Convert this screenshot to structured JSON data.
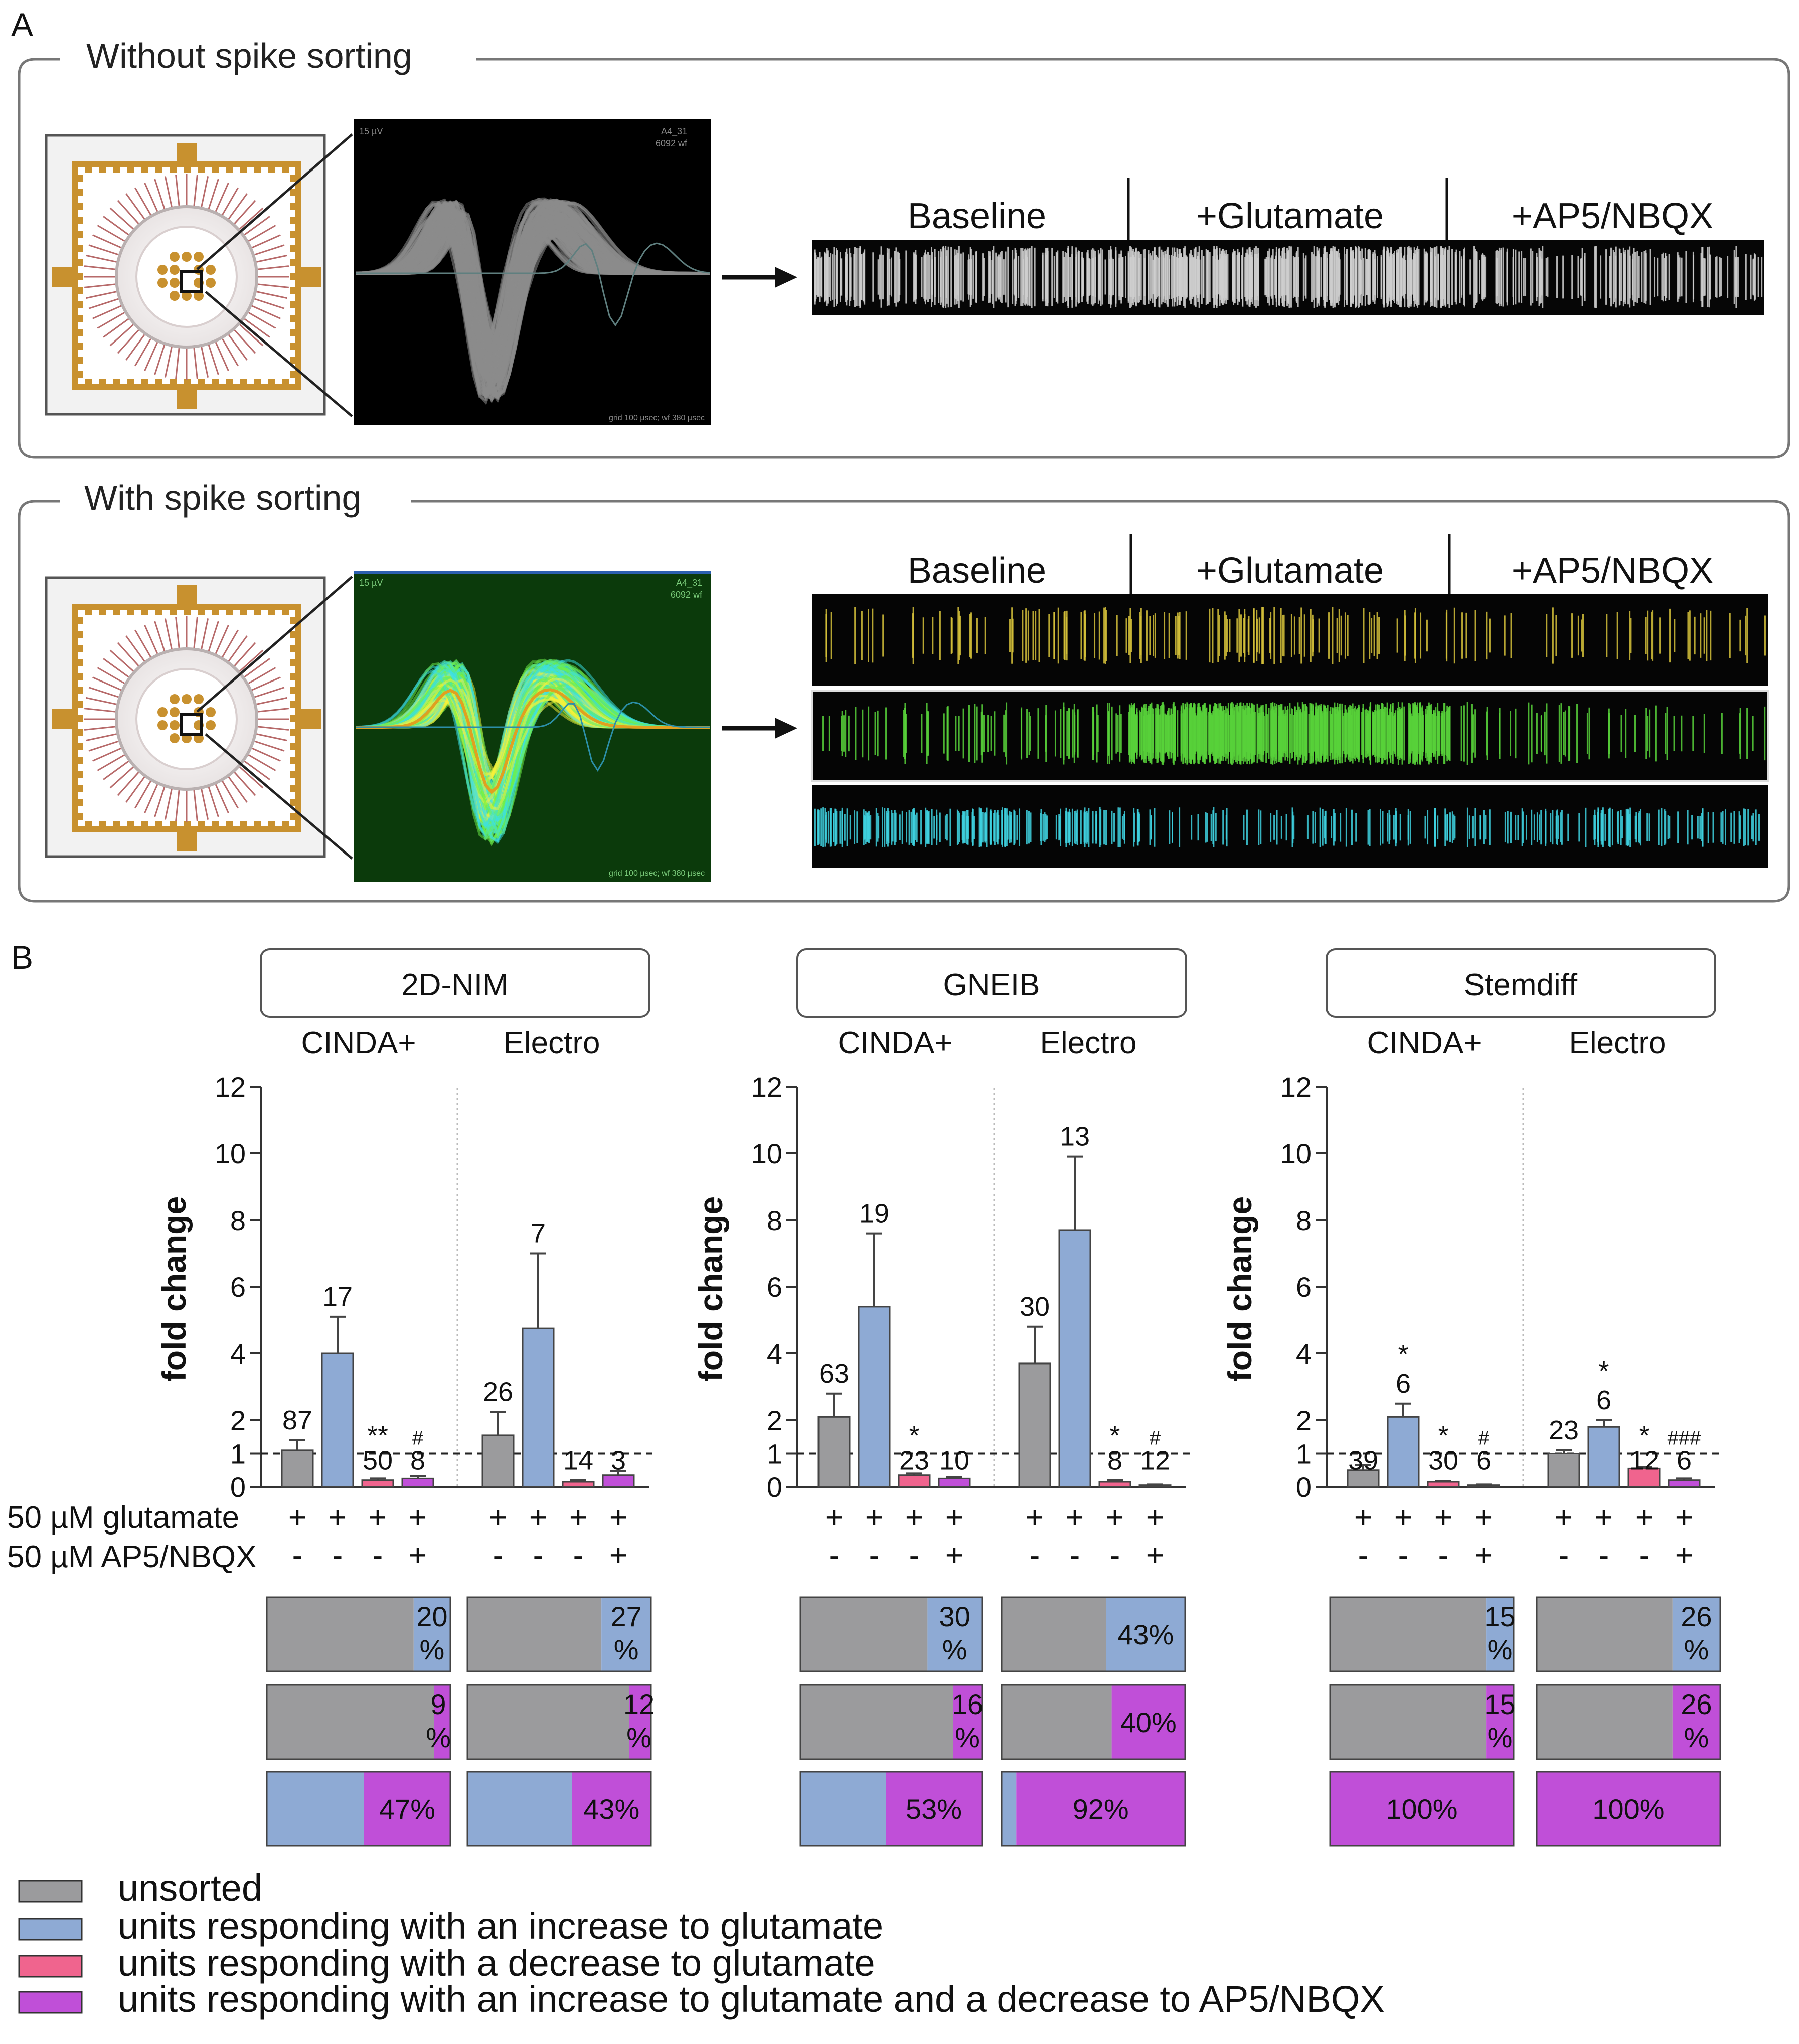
{
  "panel_a": {
    "letter": "A",
    "top_title": "Without spike sorting",
    "bottom_title": "With spike sorting",
    "segments": [
      "Baseline",
      "+Glutamate",
      "+AP5/NBQX"
    ],
    "scope_labels": {
      "voltage": "15 µV",
      "channel": "A4_31",
      "count": "6092 wf",
      "grid": "grid 100 µsec; wf 380 µsec"
    }
  },
  "panel_b": {
    "letter": "B",
    "ylabel": "fold change",
    "row_label_glutamate": "50 µM glutamate",
    "row_label_ap5": "50 µM AP5/NBQX",
    "colors": {
      "unsorted": "#9b9b9d",
      "increase": "#8eaad4",
      "decrease": "#f0648e",
      "increase_decrease": "#c04fd8"
    }
  },
  "chart_data": [
    {
      "type": "bar",
      "title": "2D-NIM",
      "groups": [
        "CINDA+",
        "Electro"
      ],
      "ylim": [
        0,
        12
      ],
      "yticks": [
        0,
        1,
        2,
        4,
        6,
        8,
        10,
        12
      ],
      "glutamate": [
        "+",
        "+",
        "+",
        "+"
      ],
      "ap5": [
        "-",
        "-",
        "-",
        "+"
      ],
      "bars": [
        {
          "group": "CINDA+",
          "category": "unsorted",
          "value": 1.1,
          "err": 0.3,
          "n": "87",
          "sig": ""
        },
        {
          "group": "CINDA+",
          "category": "increase",
          "value": 4.0,
          "err": 1.1,
          "n": "17",
          "sig": ""
        },
        {
          "group": "CINDA+",
          "category": "decrease",
          "value": 0.2,
          "err": 0.05,
          "n": "50",
          "sig": "**"
        },
        {
          "group": "CINDA+",
          "category": "increase_decrease",
          "value": 0.25,
          "err": 0.08,
          "n": "8",
          "sig": "#"
        },
        {
          "group": "Electro",
          "category": "unsorted",
          "value": 1.55,
          "err": 0.7,
          "n": "26",
          "sig": ""
        },
        {
          "group": "Electro",
          "category": "increase",
          "value": 4.75,
          "err": 2.25,
          "n": "7",
          "sig": ""
        },
        {
          "group": "Electro",
          "category": "decrease",
          "value": 0.15,
          "err": 0.05,
          "n": "14",
          "sig": ""
        },
        {
          "group": "Electro",
          "category": "increase_decrease",
          "value": 0.35,
          "err": 0.12,
          "n": "3",
          "sig": ""
        }
      ],
      "proportions": [
        [
          {
            "unsorted": 80,
            "increase": 20,
            "label": "20\n%"
          },
          {
            "unsorted": 73,
            "increase": 27,
            "label": "27\n%"
          }
        ],
        [
          {
            "unsorted": 91,
            "increase_decrease": 9,
            "label": "9\n%"
          },
          {
            "unsorted": 88,
            "increase_decrease": 12,
            "label": "12\n%"
          }
        ],
        [
          {
            "increase": 53,
            "increase_decrease": 47,
            "label": "47%"
          },
          {
            "increase": 57,
            "increase_decrease": 43,
            "label": "43%"
          }
        ]
      ]
    },
    {
      "type": "bar",
      "title": "GNEIB",
      "groups": [
        "CINDA+",
        "Electro"
      ],
      "ylim": [
        0,
        12
      ],
      "yticks": [
        0,
        1,
        2,
        4,
        6,
        8,
        10,
        12
      ],
      "glutamate": [
        "+",
        "+",
        "+",
        "+"
      ],
      "ap5": [
        "-",
        "-",
        "-",
        "+"
      ],
      "bars": [
        {
          "group": "CINDA+",
          "category": "unsorted",
          "value": 2.1,
          "err": 0.7,
          "n": "63",
          "sig": ""
        },
        {
          "group": "CINDA+",
          "category": "increase",
          "value": 5.4,
          "err": 2.2,
          "n": "19",
          "sig": ""
        },
        {
          "group": "CINDA+",
          "category": "decrease",
          "value": 0.35,
          "err": 0.05,
          "n": "23",
          "sig": "*"
        },
        {
          "group": "CINDA+",
          "category": "increase_decrease",
          "value": 0.25,
          "err": 0.05,
          "n": "10",
          "sig": ""
        },
        {
          "group": "Electro",
          "category": "unsorted",
          "value": 3.7,
          "err": 1.1,
          "n": "30",
          "sig": ""
        },
        {
          "group": "Electro",
          "category": "increase",
          "value": 7.7,
          "err": 2.2,
          "n": "13",
          "sig": ""
        },
        {
          "group": "Electro",
          "category": "decrease",
          "value": 0.15,
          "err": 0.05,
          "n": "8",
          "sig": "*"
        },
        {
          "group": "Electro",
          "category": "increase_decrease",
          "value": 0.05,
          "err": 0.02,
          "n": "12",
          "sig": "#"
        }
      ],
      "proportions": [
        [
          {
            "unsorted": 70,
            "increase": 30,
            "label": "30\n%"
          },
          {
            "unsorted": 57,
            "increase": 43,
            "label": "43%"
          }
        ],
        [
          {
            "unsorted": 84,
            "increase_decrease": 16,
            "label": "16\n%"
          },
          {
            "unsorted": 60,
            "increase_decrease": 40,
            "label": "40%"
          }
        ],
        [
          {
            "increase": 47,
            "increase_decrease": 53,
            "label": "53%"
          },
          {
            "increase": 8,
            "increase_decrease": 92,
            "label": "92%"
          }
        ]
      ]
    },
    {
      "type": "bar",
      "title": "Stemdiff",
      "groups": [
        "CINDA+",
        "Electro"
      ],
      "ylim": [
        0,
        12
      ],
      "yticks": [
        0,
        1,
        2,
        4,
        6,
        8,
        10,
        12
      ],
      "glutamate": [
        "+",
        "+",
        "+",
        "+"
      ],
      "ap5": [
        "-",
        "-",
        "-",
        "+"
      ],
      "bars": [
        {
          "group": "CINDA+",
          "category": "unsorted",
          "value": 0.5,
          "err": 0.15,
          "n": "39",
          "sig": ""
        },
        {
          "group": "CINDA+",
          "category": "increase",
          "value": 2.1,
          "err": 0.4,
          "n": "6",
          "sig": "*"
        },
        {
          "group": "CINDA+",
          "category": "decrease",
          "value": 0.15,
          "err": 0.03,
          "n": "30",
          "sig": "*"
        },
        {
          "group": "CINDA+",
          "category": "increase_decrease",
          "value": 0.05,
          "err": 0.02,
          "n": "6",
          "sig": "#"
        },
        {
          "group": "Electro",
          "category": "unsorted",
          "value": 1.0,
          "err": 0.1,
          "n": "23",
          "sig": ""
        },
        {
          "group": "Electro",
          "category": "increase",
          "value": 1.8,
          "err": 0.2,
          "n": "6",
          "sig": "*"
        },
        {
          "group": "Electro",
          "category": "decrease",
          "value": 0.55,
          "err": 0.05,
          "n": "12",
          "sig": "*"
        },
        {
          "group": "Electro",
          "category": "increase_decrease",
          "value": 0.2,
          "err": 0.05,
          "n": "6",
          "sig": "###"
        }
      ],
      "proportions": [
        [
          {
            "unsorted": 85,
            "increase": 15,
            "label": "15\n%"
          },
          {
            "unsorted": 74,
            "increase": 26,
            "label": "26\n%"
          }
        ],
        [
          {
            "unsorted": 85,
            "increase_decrease": 15,
            "label": "15\n%"
          },
          {
            "unsorted": 74,
            "increase_decrease": 26,
            "label": "26\n%"
          }
        ],
        [
          {
            "increase_decrease": 100,
            "label": "100%"
          },
          {
            "increase_decrease": 100,
            "label": "100%"
          }
        ]
      ]
    }
  ],
  "legend": [
    {
      "key": "unsorted",
      "label": "unsorted"
    },
    {
      "key": "increase",
      "label": "units responding with an increase to glutamate"
    },
    {
      "key": "decrease",
      "label": "units responding with a decrease to glutamate"
    },
    {
      "key": "increase_decrease",
      "label": "units responding with an increase to glutamate and a decrease to AP5/NBQX"
    }
  ]
}
